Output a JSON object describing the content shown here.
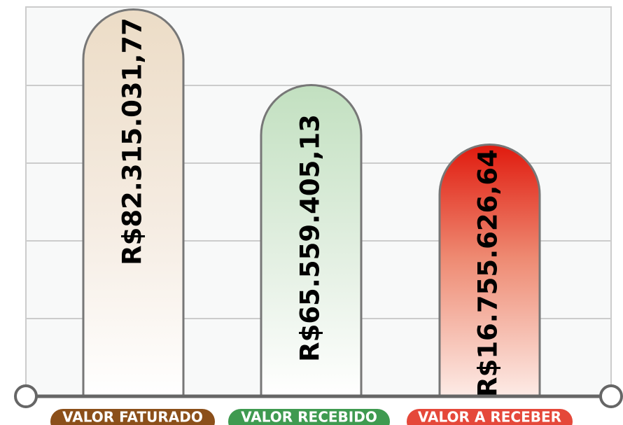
{
  "bars": [
    {
      "label": "VALOR FATURADO",
      "value": "R$82.315.031,77"
    },
    {
      "label": "VALOR RECEBIDO",
      "value": "R$65.559.405,13"
    },
    {
      "label": "VALOR A RECEBER",
      "value": "R$16.755.626,64"
    }
  ]
}
